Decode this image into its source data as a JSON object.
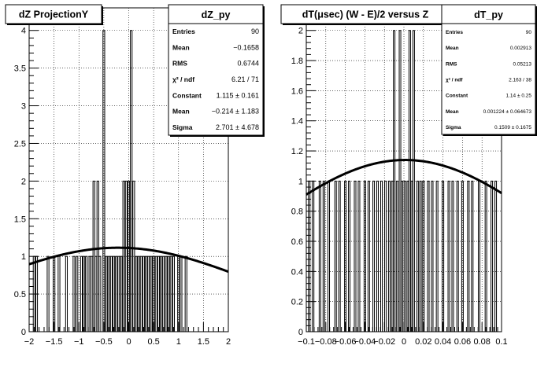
{
  "chart_data": [
    {
      "type": "bar",
      "title": "dZ ProjectionY",
      "xlim": [
        -2,
        2
      ],
      "ylim": [
        0,
        4.3
      ],
      "x_ticks": [
        -2,
        -1.5,
        -1,
        -0.5,
        0,
        0.5,
        1,
        1.5,
        2
      ],
      "x_tick_labels": [
        "−2",
        "−1.5",
        "−1",
        "−0.5",
        "0",
        "0.5",
        "1",
        "1.5",
        "2"
      ],
      "y_ticks": [
        0,
        0.5,
        1,
        1.5,
        2,
        2.5,
        3,
        3.5,
        4
      ],
      "y_tick_labels": [
        "0",
        "0.5",
        "1",
        "1.5",
        "2",
        "2.5",
        "3",
        "3.5",
        "4"
      ],
      "grid": true,
      "histogram_bins": [
        {
          "x": -1.9,
          "count": 1
        },
        {
          "x": -1.85,
          "count": 1
        },
        {
          "x": -1.62,
          "count": 1
        },
        {
          "x": -1.5,
          "count": 1
        },
        {
          "x": -1.4,
          "count": 1
        },
        {
          "x": -1.25,
          "count": 1
        },
        {
          "x": -1.1,
          "count": 1
        },
        {
          "x": -1.04,
          "count": 1
        },
        {
          "x": -0.95,
          "count": 1
        },
        {
          "x": -0.9,
          "count": 1
        },
        {
          "x": -0.85,
          "count": 1
        },
        {
          "x": -0.78,
          "count": 1
        },
        {
          "x": -0.74,
          "count": 1
        },
        {
          "x": -0.7,
          "count": 2
        },
        {
          "x": -0.66,
          "count": 1
        },
        {
          "x": -0.62,
          "count": 2
        },
        {
          "x": -0.58,
          "count": 1
        },
        {
          "x": -0.5,
          "count": 4
        },
        {
          "x": -0.45,
          "count": 1
        },
        {
          "x": -0.4,
          "count": 1
        },
        {
          "x": -0.35,
          "count": 1
        },
        {
          "x": -0.3,
          "count": 1
        },
        {
          "x": -0.25,
          "count": 1
        },
        {
          "x": -0.2,
          "count": 1
        },
        {
          "x": -0.15,
          "count": 1
        },
        {
          "x": -0.1,
          "count": 2
        },
        {
          "x": -0.05,
          "count": 2
        },
        {
          "x": 0.0,
          "count": 2
        },
        {
          "x": 0.05,
          "count": 4
        },
        {
          "x": 0.1,
          "count": 2
        },
        {
          "x": 0.15,
          "count": 1
        },
        {
          "x": 0.2,
          "count": 1
        },
        {
          "x": 0.25,
          "count": 1
        },
        {
          "x": 0.3,
          "count": 1
        },
        {
          "x": 0.35,
          "count": 1
        },
        {
          "x": 0.4,
          "count": 1
        },
        {
          "x": 0.45,
          "count": 1
        },
        {
          "x": 0.5,
          "count": 1
        },
        {
          "x": 0.55,
          "count": 1
        },
        {
          "x": 0.6,
          "count": 1
        },
        {
          "x": 0.65,
          "count": 1
        },
        {
          "x": 0.7,
          "count": 1
        },
        {
          "x": 0.75,
          "count": 1
        },
        {
          "x": 0.8,
          "count": 1
        },
        {
          "x": 0.85,
          "count": 1
        },
        {
          "x": 0.9,
          "count": 1
        },
        {
          "x": 1.0,
          "count": 1
        },
        {
          "x": 1.05,
          "count": 1
        },
        {
          "x": 1.15,
          "count": 1
        }
      ],
      "fit": {
        "type": "gaussian",
        "constant": 1.115,
        "mean": -0.214,
        "sigma": 2.701
      },
      "stats_box": {
        "name": "dZ_py",
        "rows": [
          {
            "label": "Entries",
            "value": "90"
          },
          {
            "label": "Mean",
            "value": "−0.1658"
          },
          {
            "label": "RMS",
            "value": "0.6744"
          },
          {
            "label": "χ² / ndf",
            "value": "6.21 / 71"
          },
          {
            "label": "Constant",
            "value": "1.115 ± 0.161"
          },
          {
            "label": "Mean",
            "value": "−0.214 ± 1.183"
          },
          {
            "label": "Sigma",
            "value": "2.701 ± 4.678"
          }
        ]
      }
    },
    {
      "type": "bar",
      "title": "dT(μsec) (W - E)/2 versus Z",
      "xlim": [
        -0.1,
        0.1
      ],
      "ylim": [
        0,
        2.15
      ],
      "x_ticks": [
        -0.1,
        -0.08,
        -0.06,
        -0.04,
        -0.02,
        0,
        0.02,
        0.04,
        0.06,
        0.08,
        0.1
      ],
      "x_tick_labels": [
        "−0.1",
        "−0.08",
        "−0.06",
        "−0.04",
        "−0.02",
        "0",
        "0.02",
        "0.04",
        "0.06",
        "0.08",
        "0.1"
      ],
      "y_ticks": [
        0,
        0.2,
        0.4,
        0.6,
        0.8,
        1,
        1.2,
        1.4,
        1.6,
        1.8,
        2
      ],
      "y_tick_labels": [
        "0",
        "0.2",
        "0.4",
        "0.6",
        "0.8",
        "1",
        "1.2",
        "1.4",
        "1.6",
        "1.8",
        "2"
      ],
      "grid": true,
      "histogram_bins": [
        {
          "x": -0.097,
          "count": 1
        },
        {
          "x": -0.093,
          "count": 1
        },
        {
          "x": -0.086,
          "count": 1
        },
        {
          "x": -0.082,
          "count": 1
        },
        {
          "x": -0.077,
          "count": 1
        },
        {
          "x": -0.07,
          "count": 1
        },
        {
          "x": -0.066,
          "count": 1
        },
        {
          "x": -0.06,
          "count": 1
        },
        {
          "x": -0.056,
          "count": 1
        },
        {
          "x": -0.05,
          "count": 1
        },
        {
          "x": -0.046,
          "count": 1
        },
        {
          "x": -0.04,
          "count": 1
        },
        {
          "x": -0.036,
          "count": 1
        },
        {
          "x": -0.031,
          "count": 1
        },
        {
          "x": -0.027,
          "count": 1
        },
        {
          "x": -0.023,
          "count": 1
        },
        {
          "x": -0.019,
          "count": 1
        },
        {
          "x": -0.015,
          "count": 1
        },
        {
          "x": -0.012,
          "count": 1
        },
        {
          "x": -0.01,
          "count": 2
        },
        {
          "x": -0.007,
          "count": 1
        },
        {
          "x": -0.004,
          "count": 2
        },
        {
          "x": -0.002,
          "count": 1
        },
        {
          "x": 0.001,
          "count": 1
        },
        {
          "x": 0.004,
          "count": 1
        },
        {
          "x": 0.006,
          "count": 2
        },
        {
          "x": 0.008,
          "count": 1
        },
        {
          "x": 0.01,
          "count": 2
        },
        {
          "x": 0.014,
          "count": 1
        },
        {
          "x": 0.017,
          "count": 1
        },
        {
          "x": 0.02,
          "count": 1
        },
        {
          "x": 0.025,
          "count": 1
        },
        {
          "x": 0.029,
          "count": 1
        },
        {
          "x": 0.034,
          "count": 1
        },
        {
          "x": 0.04,
          "count": 1
        },
        {
          "x": 0.046,
          "count": 1
        },
        {
          "x": 0.05,
          "count": 1
        },
        {
          "x": 0.055,
          "count": 1
        },
        {
          "x": 0.06,
          "count": 1
        },
        {
          "x": 0.066,
          "count": 1
        },
        {
          "x": 0.07,
          "count": 1
        },
        {
          "x": 0.077,
          "count": 1
        },
        {
          "x": 0.084,
          "count": 1
        },
        {
          "x": 0.09,
          "count": 1
        },
        {
          "x": 0.094,
          "count": 1
        }
      ],
      "fit": {
        "type": "gaussian",
        "constant": 1.14,
        "mean": 0.001224,
        "sigma": 0.1509
      },
      "stats_box": {
        "name": "dT_py",
        "rows": [
          {
            "label": "Entries",
            "value": "90"
          },
          {
            "label": "Mean",
            "value": "0.002913"
          },
          {
            "label": "RMS",
            "value": "0.05213"
          },
          {
            "label": "χ² / ndf",
            "value": "2.163 / 38"
          },
          {
            "label": "Constant",
            "value": "1.14 ± 0.25"
          },
          {
            "label": "Mean",
            "value": "0.001224 ± 0.064673"
          },
          {
            "label": "Sigma",
            "value": "0.1509 ± 0.1675"
          }
        ]
      }
    }
  ]
}
